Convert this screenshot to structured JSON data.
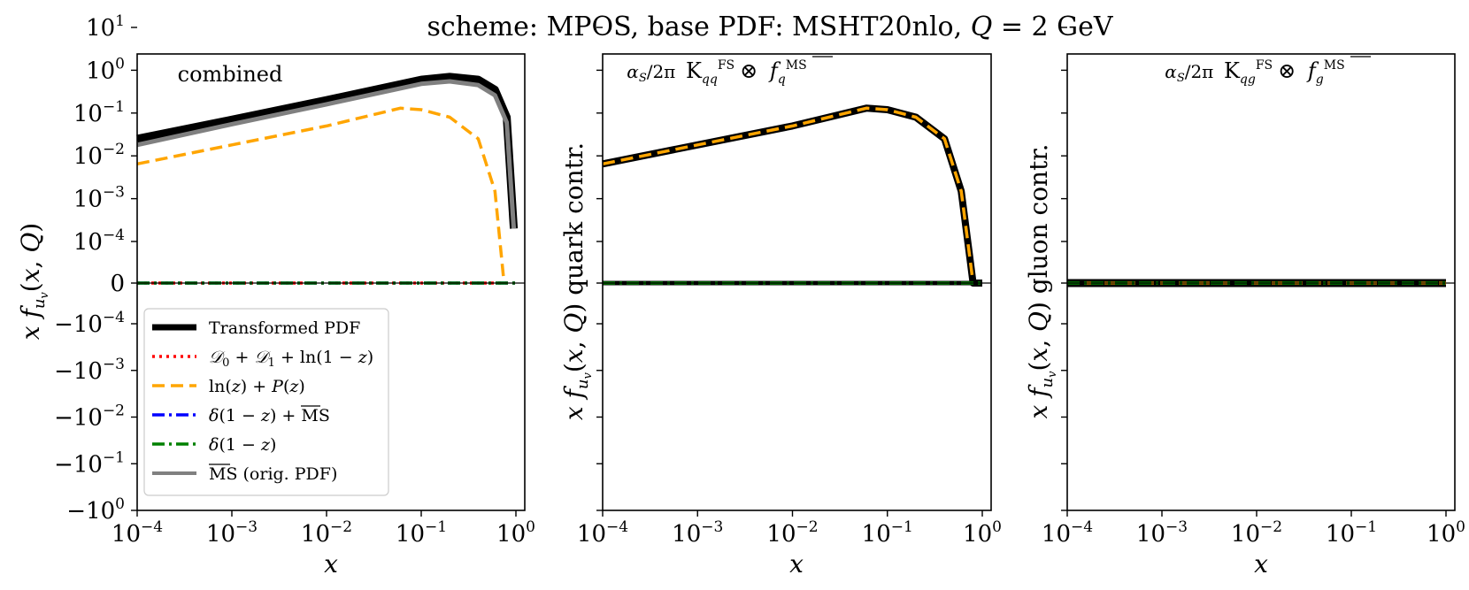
{
  "chart_data": {
    "type": "line",
    "title": "scheme: MPOS, base PDF: MSHT20nlo, Q = 2 GeV",
    "scale": "log x, symlog y",
    "xlim": [
      0.0001,
      1
    ],
    "x_ticks": [
      "10^-4",
      "10^-3",
      "10^-2",
      "10^-1",
      "10^0"
    ],
    "y_ticks": [
      "10^1",
      "10^0",
      "10^-1",
      "10^-2",
      "10^-3",
      "10^-4",
      "0",
      "-10^-4",
      "-10^-3",
      "-10^-2",
      "-10^-1",
      "-10^0"
    ],
    "panels": [
      {
        "annotation": "combined",
        "xlabel": "x",
        "ylabel": "x f_{u_v}(x, Q)",
        "series": [
          {
            "name": "Transformed PDF",
            "color": "#000000",
            "style": "solid-thick",
            "x": [
              0.0001,
              0.001,
              0.01,
              0.1,
              0.2,
              0.4,
              0.6,
              0.8,
              0.95
            ],
            "y": [
              0.025,
              0.07,
              0.2,
              0.6,
              0.7,
              0.6,
              0.35,
              0.08,
              0.0002
            ]
          },
          {
            "name": "D0 + D1 + ln(1 - z)",
            "color": "#ff0000",
            "style": "dotted",
            "x": [
              0.0001,
              1
            ],
            "y": [
              0,
              0
            ]
          },
          {
            "name": "ln(z) + P(z)",
            "color": "#ffa500",
            "style": "dashed",
            "x": [
              0.0001,
              0.001,
              0.01,
              0.06,
              0.1,
              0.2,
              0.4,
              0.6,
              0.75
            ],
            "y": [
              0.0065,
              0.018,
              0.05,
              0.13,
              0.12,
              0.08,
              0.025,
              0.0015,
              0
            ]
          },
          {
            "name": "δ(1 - z) + MS-bar",
            "color": "#0000ff",
            "style": "dashdot",
            "x": [
              0.0001,
              1
            ],
            "y": [
              0,
              0
            ]
          },
          {
            "name": "δ(1 - z)",
            "color": "#008000",
            "style": "dashdot",
            "x": [
              0.0001,
              1
            ],
            "y": [
              0,
              0
            ]
          },
          {
            "name": "MS-bar (orig. PDF)",
            "color": "#808080",
            "style": "solid",
            "x": [
              0.0001,
              0.001,
              0.01,
              0.1,
              0.2,
              0.4,
              0.6,
              0.8,
              0.95
            ],
            "y": [
              0.018,
              0.055,
              0.16,
              0.48,
              0.55,
              0.45,
              0.26,
              0.06,
              0.0002
            ]
          }
        ]
      },
      {
        "annotation": "(α_S/2π) K_qq^FS ⊗ f_q^MS-bar",
        "xlabel": "x",
        "ylabel": "x f_{u_v}(x, Q) quark contr.",
        "series": [
          {
            "name": "quark contribution",
            "color": "#000000",
            "x": [
              0.0001,
              0.001,
              0.01,
              0.06,
              0.1,
              0.2,
              0.4,
              0.6,
              0.75,
              0.8,
              1
            ],
            "y": [
              0.0065,
              0.018,
              0.05,
              0.13,
              0.12,
              0.08,
              0.025,
              0.0015,
              5e-05,
              0,
              0
            ]
          },
          {
            "name": "zero line",
            "color": "#008000",
            "x": [
              0.0001,
              1
            ],
            "y": [
              0,
              0
            ]
          }
        ]
      },
      {
        "annotation": "(α_S/2π) K_qg^FS ⊗ f_g^MS-bar",
        "xlabel": "x",
        "ylabel": "x f_{u_v}(x, Q) gluon contr.",
        "series": [
          {
            "name": "gluon contribution",
            "color": "#000000",
            "x": [
              0.0001,
              1
            ],
            "y": [
              0,
              0
            ]
          }
        ]
      }
    ],
    "legend": {
      "placement": "lower-left (first panel)",
      "entries": [
        {
          "label": "Transformed PDF",
          "color": "#000000",
          "style": "solid-thick"
        },
        {
          "label": "D0 + D1 + ln(1 - z)",
          "color": "#ff0000",
          "style": "dotted"
        },
        {
          "label": "ln(z) + P(z)",
          "color": "#ffa500",
          "style": "dashed"
        },
        {
          "label": "δ(1 - z) + MS-bar",
          "color": "#0000ff",
          "style": "dashdot"
        },
        {
          "label": "δ(1 - z)",
          "color": "#008000",
          "style": "dashdot"
        },
        {
          "label": "MS-bar (orig. PDF)",
          "color": "#808080",
          "style": "solid"
        }
      ]
    }
  }
}
